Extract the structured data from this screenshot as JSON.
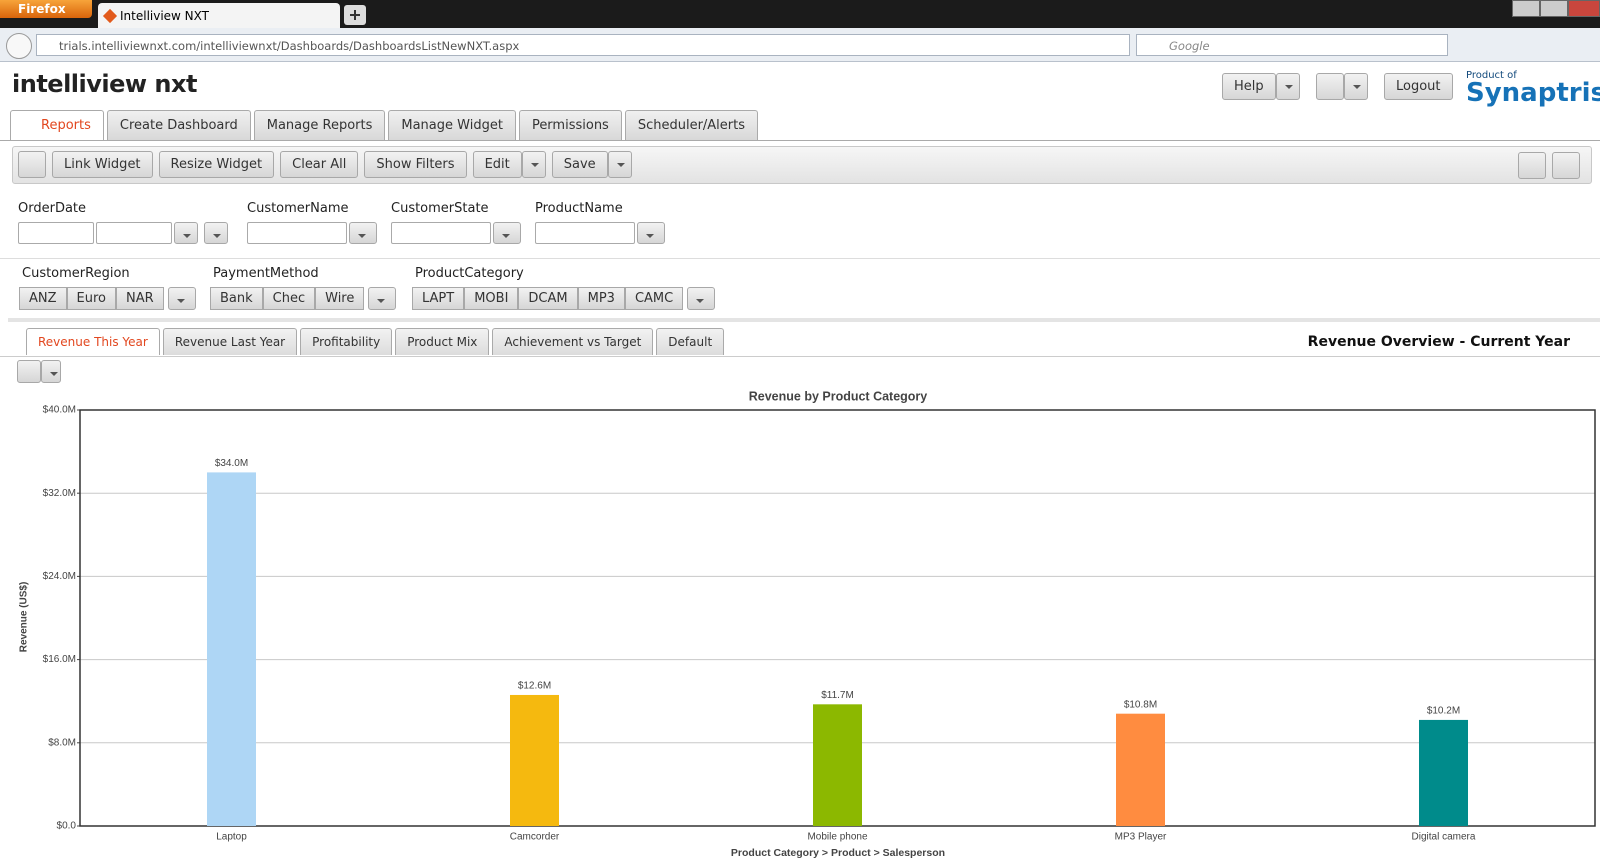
{
  "browser": {
    "menu": "Firefox",
    "tab": "Intelliview NXT",
    "url": "trials.intelliviewnxt.com/intelliviewnxt/Dashboards/DashboardsListNewNXT.aspx",
    "search": "Google"
  },
  "header": {
    "logo": "intelliview nxt",
    "help": "Help",
    "logout": "Logout",
    "vendor_prefix": "Product of",
    "vendor": "Synaptris"
  },
  "nav_tabs": [
    "Reports",
    "Create Dashboard",
    "Manage Reports",
    "Manage Widget",
    "Permissions",
    "Scheduler/Alerts"
  ],
  "toolbar": [
    "Link Widget",
    "Resize Widget",
    "Clear All",
    "Show Filters",
    "Edit",
    "Save"
  ],
  "filters": [
    "OrderDate",
    "CustomerName",
    "CustomerState",
    "ProductName"
  ],
  "filter_groups": [
    {
      "label": "CustomerRegion",
      "options": [
        "ANZ",
        "Euro",
        "NAR"
      ]
    },
    {
      "label": "PaymentMethod",
      "options": [
        "Bank",
        "Chec",
        "Wire"
      ]
    },
    {
      "label": "ProductCategory",
      "options": [
        "LAPT",
        "MOBI",
        "DCAM",
        "MP3",
        "CAMC"
      ]
    }
  ],
  "report_tabs": [
    "Revenue This Year",
    "Revenue Last Year",
    "Profitability",
    "Product Mix",
    "Achievement vs Target",
    "Default"
  ],
  "report_heading": "Revenue Overview - Current Year",
  "chart_data": {
    "type": "bar",
    "title": "Revenue by Product Category",
    "y_label": "Revenue (US$)",
    "x_label": "Product Category > Product > Salesperson",
    "categories": [
      "Laptop",
      "Camcorder",
      "Mobile phone",
      "MP3 Player",
      "Digital camera"
    ],
    "values": [
      34000000,
      12600000,
      11700000,
      10800000,
      10200000
    ],
    "value_labels": [
      "$34.0M",
      "$12.6M",
      "$11.7M",
      "$10.8M",
      "$10.2M"
    ],
    "colors": [
      "#aed6f5",
      "#f5b90f",
      "#8cb800",
      "#ff8c40",
      "#008b8b"
    ],
    "ylim": [
      0,
      40000000
    ],
    "yticks": [
      {
        "value": 0,
        "label": "$0.0"
      },
      {
        "value": 8000000,
        "label": "$8.0M"
      },
      {
        "value": 16000000,
        "label": "$16.0M"
      },
      {
        "value": 24000000,
        "label": "$24.0M"
      },
      {
        "value": 32000000,
        "label": "$32.0M"
      },
      {
        "value": 40000000,
        "label": "$40.0M"
      }
    ],
    "grid": true
  }
}
